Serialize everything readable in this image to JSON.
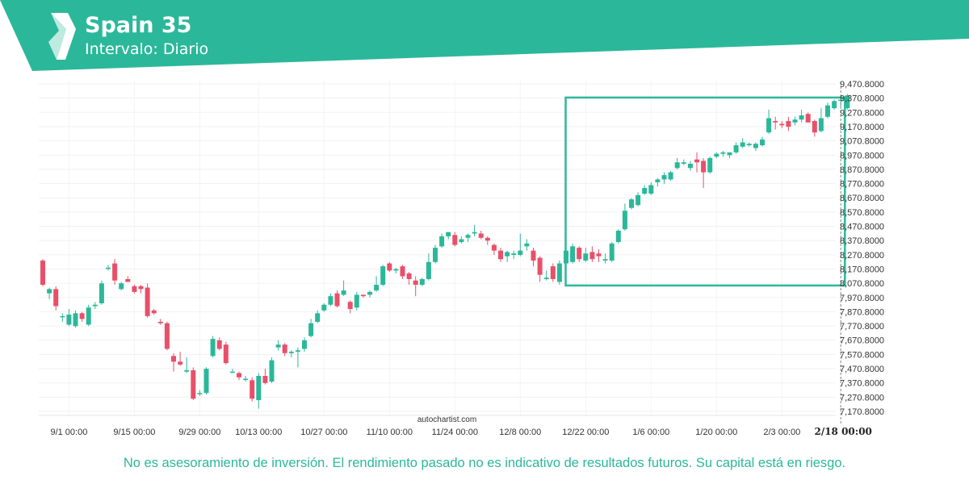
{
  "header": {
    "title": "Spain 35",
    "subtitle": "Intervalo: Diario",
    "brand_color": "#2bb89a",
    "logo_icon": "autochartist-logo-icon"
  },
  "chart_data": {
    "type": "candlestick",
    "instrument": "Spain 35",
    "interval": "Diario",
    "watermark": "autochartist.com",
    "x_tick_labels": [
      "9/1 00:00",
      "9/15 00:00",
      "9/29 00:00",
      "10/13 00:00",
      "10/27 00:00",
      "11/10 00:00",
      "11/24 00:00",
      "12/8 00:00",
      "12/22 00:00",
      "1/6 00:00",
      "1/20 00:00",
      "2/3 00:00",
      "2/18 00:00"
    ],
    "x_tick_candle_index": [
      4,
      14,
      24,
      33,
      43,
      53,
      63,
      73,
      83,
      93,
      103,
      113,
      122
    ],
    "highlight_tick": "2/18 00:00",
    "y_tick_labels": [
      "9,470.8000",
      "9,370.8000",
      "9,270.8000",
      "9,170.8000",
      "9,070.8000",
      "8,970.8000",
      "8,870.8000",
      "8,770.8000",
      "8,670.8000",
      "8,570.8000",
      "8,470.8000",
      "8,370.8000",
      "8,270.8000",
      "8,170.8000",
      "8,070.8000",
      "7,970.8000",
      "7,870.8000",
      "7,770.8000",
      "7,670.8000",
      "7,570.8000",
      "7,470.8000",
      "7,370.8000",
      "7,270.8000",
      "7,170.8000"
    ],
    "ylim": [
      7170.8,
      9470.8
    ],
    "up_color": "#2bb89a",
    "down_color": "#e8506a",
    "pattern_box": {
      "type": "rectangle",
      "start_index": 80,
      "end_index": 123,
      "top": 9375,
      "bottom": 8055,
      "color": "#2bb89a"
    },
    "candles": [
      [
        8230,
        8240,
        8050,
        8060
      ],
      [
        8000,
        8040,
        7960,
        8030
      ],
      [
        8030,
        8050,
        7880,
        7910
      ],
      [
        7840,
        7860,
        7800,
        7840
      ],
      [
        7780,
        7890,
        7770,
        7850
      ],
      [
        7770,
        7880,
        7760,
        7860
      ],
      [
        7860,
        7870,
        7800,
        7820
      ],
      [
        7780,
        7920,
        7770,
        7900
      ],
      [
        7910,
        7940,
        7890,
        7920
      ],
      [
        7930,
        8090,
        7920,
        8070
      ],
      [
        8180,
        8200,
        8160,
        8180
      ],
      [
        8210,
        8240,
        8060,
        8090
      ],
      [
        8030,
        8080,
        8020,
        8070
      ],
      [
        8100,
        8120,
        8080,
        8080
      ],
      [
        8050,
        8060,
        8000,
        8010
      ],
      [
        8050,
        8060,
        8000,
        8030
      ],
      [
        8040,
        8070,
        7830,
        7840
      ],
      [
        7880,
        7890,
        7850,
        7860
      ],
      [
        7800,
        7820,
        7780,
        7790
      ],
      [
        7790,
        7800,
        7600,
        7610
      ],
      [
        7560,
        7580,
        7450,
        7520
      ],
      [
        7520,
        7590,
        7490,
        7500
      ],
      [
        7450,
        7550,
        7440,
        7460
      ],
      [
        7460,
        7480,
        7250,
        7260
      ],
      [
        7300,
        7320,
        7280,
        7300
      ],
      [
        7300,
        7480,
        7290,
        7470
      ],
      [
        7560,
        7700,
        7550,
        7680
      ],
      [
        7670,
        7690,
        7600,
        7610
      ],
      [
        7640,
        7660,
        7500,
        7510
      ],
      [
        7450,
        7470,
        7440,
        7450
      ],
      [
        7440,
        7450,
        7390,
        7410
      ],
      [
        7400,
        7420,
        7380,
        7400
      ],
      [
        7390,
        7410,
        7240,
        7260
      ],
      [
        7250,
        7440,
        7190,
        7420
      ],
      [
        7420,
        7470,
        7360,
        7370
      ],
      [
        7380,
        7550,
        7370,
        7530
      ],
      [
        7620,
        7670,
        7600,
        7640
      ],
      [
        7640,
        7650,
        7560,
        7580
      ],
      [
        7580,
        7600,
        7550,
        7590
      ],
      [
        7590,
        7620,
        7480,
        7600
      ],
      [
        7610,
        7690,
        7590,
        7670
      ],
      [
        7700,
        7820,
        7690,
        7790
      ],
      [
        7800,
        7880,
        7790,
        7860
      ],
      [
        7880,
        7930,
        7870,
        7920
      ],
      [
        7920,
        8000,
        7910,
        7980
      ],
      [
        8000,
        8020,
        7900,
        7910
      ],
      [
        7990,
        8090,
        7980,
        8020
      ],
      [
        7940,
        7950,
        7860,
        7890
      ],
      [
        7900,
        8010,
        7880,
        7990
      ],
      [
        7990,
        7990,
        7970,
        7980
      ],
      [
        7990,
        8020,
        7970,
        8010
      ],
      [
        8020,
        8120,
        8010,
        8060
      ],
      [
        8060,
        8200,
        8050,
        8190
      ],
      [
        8210,
        8220,
        8150,
        8160
      ],
      [
        8160,
        8180,
        8140,
        8170
      ],
      [
        8190,
        8200,
        8100,
        8120
      ],
      [
        8140,
        8150,
        8060,
        8100
      ],
      [
        8090,
        8120,
        7980,
        8060
      ],
      [
        8060,
        8110,
        8050,
        8100
      ],
      [
        8100,
        8280,
        8090,
        8220
      ],
      [
        8220,
        8340,
        8210,
        8320
      ],
      [
        8330,
        8420,
        8320,
        8400
      ],
      [
        8400,
        8430,
        8380,
        8430
      ],
      [
        8410,
        8430,
        8330,
        8340
      ],
      [
        8360,
        8400,
        8350,
        8380
      ],
      [
        8390,
        8420,
        8360,
        8410
      ],
      [
        8420,
        8480,
        8400,
        8430
      ],
      [
        8420,
        8440,
        8380,
        8390
      ],
      [
        8390,
        8400,
        8340,
        8370
      ],
      [
        8340,
        8350,
        8270,
        8300
      ],
      [
        8300,
        8320,
        8220,
        8240
      ],
      [
        8260,
        8300,
        8220,
        8290
      ],
      [
        8270,
        8300,
        8240,
        8280
      ],
      [
        8270,
        8420,
        8260,
        8300
      ],
      [
        8330,
        8380,
        8300,
        8350
      ],
      [
        8300,
        8320,
        8190,
        8230
      ],
      [
        8250,
        8260,
        8080,
        8130
      ],
      [
        8100,
        8160,
        8090,
        8110
      ],
      [
        8190,
        8210,
        8080,
        8100
      ],
      [
        8080,
        8230,
        8060,
        8210
      ],
      [
        8210,
        8310,
        8200,
        8300
      ],
      [
        8220,
        8350,
        8210,
        8330
      ],
      [
        8320,
        8330,
        8220,
        8240
      ],
      [
        8230,
        8320,
        8220,
        8280
      ],
      [
        8290,
        8330,
        8220,
        8240
      ],
      [
        8280,
        8310,
        8220,
        8260
      ],
      [
        8230,
        8280,
        8210,
        8240
      ],
      [
        8230,
        8360,
        8220,
        8350
      ],
      [
        8360,
        8450,
        8350,
        8440
      ],
      [
        8450,
        8630,
        8440,
        8580
      ],
      [
        8600,
        8670,
        8590,
        8660
      ],
      [
        8620,
        8710,
        8610,
        8690
      ],
      [
        8700,
        8760,
        8690,
        8740
      ],
      [
        8700,
        8780,
        8690,
        8760
      ],
      [
        8780,
        8810,
        8750,
        8800
      ],
      [
        8800,
        8850,
        8770,
        8830
      ],
      [
        8800,
        8860,
        8790,
        8850
      ],
      [
        8880,
        8950,
        8870,
        8920
      ],
      [
        8910,
        8940,
        8900,
        8920
      ],
      [
        8880,
        8930,
        8860,
        8910
      ],
      [
        8940,
        8990,
        8850,
        8920
      ],
      [
        8930,
        8950,
        8740,
        8850
      ],
      [
        8850,
        8960,
        8840,
        8950
      ],
      [
        8960,
        8990,
        8950,
        8980
      ],
      [
        8980,
        9000,
        8960,
        8990
      ],
      [
        8970,
        8990,
        8950,
        8990
      ],
      [
        8990,
        9060,
        8980,
        9040
      ],
      [
        9030,
        9090,
        9020,
        9060
      ],
      [
        9040,
        9060,
        9030,
        9050
      ],
      [
        9020,
        9060,
        9000,
        9050
      ],
      [
        9040,
        9100,
        9030,
        9080
      ],
      [
        9130,
        9290,
        9120,
        9230
      ],
      [
        9210,
        9240,
        9150,
        9200
      ],
      [
        9190,
        9210,
        9160,
        9180
      ],
      [
        9210,
        9240,
        9140,
        9170
      ],
      [
        9200,
        9240,
        9180,
        9220
      ],
      [
        9220,
        9290,
        9200,
        9250
      ],
      [
        9260,
        9270,
        9200,
        9200
      ],
      [
        9210,
        9220,
        9100,
        9130
      ],
      [
        9140,
        9300,
        9130,
        9230
      ],
      [
        9240,
        9340,
        9230,
        9320
      ],
      [
        9300,
        9360,
        9290,
        9350
      ],
      [
        9360,
        9380,
        9310,
        9360
      ],
      [
        9300,
        9400,
        9290,
        9390
      ]
    ]
  },
  "footer": {
    "disclaimer": "No es asesoramiento de inversión. El rendimiento pasado no es indicativo de resultados futuros. Su capital está en riesgo."
  }
}
